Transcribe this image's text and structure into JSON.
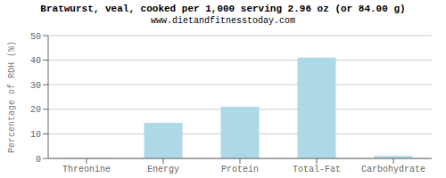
{
  "chart_data": {
    "type": "bar",
    "title": "Bratwurst, veal, cooked per 1,000 serving 2.96 oz (or 84.00 g)",
    "subtitle": "www.dietandfitnesstoday.com",
    "ylabel": "Percentage of RDH (%)",
    "categories": [
      "Threonine",
      "Energy",
      "Protein",
      "Total-Fat",
      "Carbohydrate"
    ],
    "values": [
      0.3,
      14.5,
      21.0,
      41.0,
      1.0
    ],
    "color": "#add8e6",
    "ylim": [
      0,
      50
    ],
    "yticks": [
      0,
      10,
      20,
      30,
      40,
      50
    ],
    "grid": true
  }
}
